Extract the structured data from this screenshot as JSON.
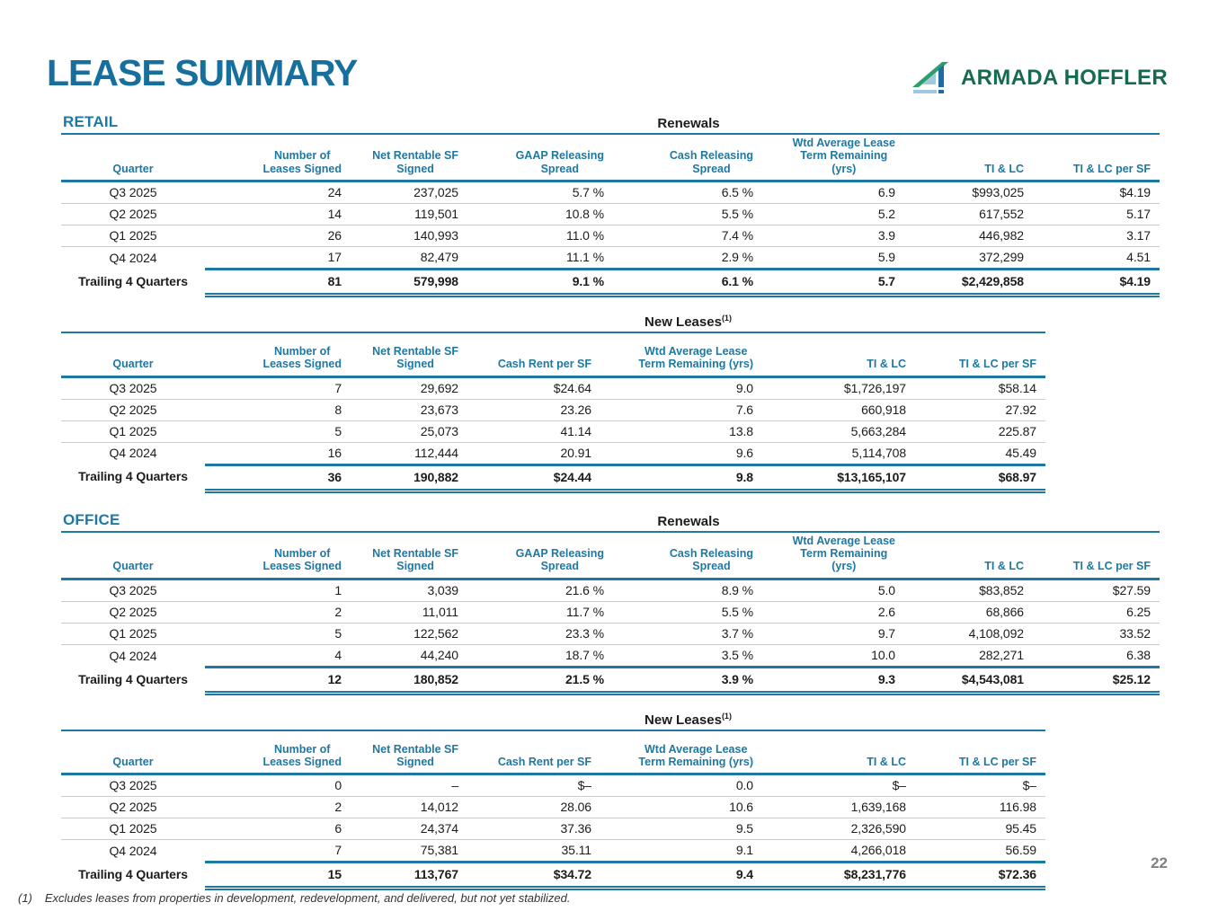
{
  "page": {
    "title": "LEASE SUMMARY",
    "logo_text": "ARMADA HOFFLER",
    "page_number": "22",
    "footnote_marker": "(1)",
    "footnote_text": "Excludes leases from properties in development, redevelopment, and delivered, but not yet stabilized."
  },
  "colors": {
    "accent_teal": "#1f78a2",
    "title_teal": "#176f9e",
    "logo_green": "#156b50",
    "logo_icon_green": "#2e9d6c",
    "logo_icon_light_blue": "#9fc9e2",
    "logo_icon_dark_blue": "#1e6ca6",
    "row_divider": "#cbcbcb",
    "page_number_gray": "#7e8083"
  },
  "sections": [
    {
      "name": "RETAIL",
      "tables": [
        {
          "title": "Renewals",
          "sup": "",
          "kind": "renewals",
          "columns": [
            "Quarter",
            "Number of\nLeases Signed",
            "Net Rentable SF\nSigned",
            "GAAP Releasing\nSpread",
            "Cash Releasing\nSpread",
            "Wtd Average Lease\nTerm Remaining\n(yrs)",
            "TI & LC",
            "TI & LC per SF"
          ],
          "rows": [
            [
              "Q3 2025",
              "24",
              "237,025",
              "5.7 %",
              "6.5 %",
              "6.9",
              "$993,025",
              "$4.19"
            ],
            [
              "Q2 2025",
              "14",
              "119,501",
              "10.8 %",
              "5.5 %",
              "5.2",
              "617,552",
              "5.17"
            ],
            [
              "Q1 2025",
              "26",
              "140,993",
              "11.0 %",
              "7.4 %",
              "3.9",
              "446,982",
              "3.17"
            ],
            [
              "Q4 2024",
              "17",
              "82,479",
              "11.1 %",
              "2.9 %",
              "5.9",
              "372,299",
              "4.51"
            ]
          ],
          "total": [
            "Trailing 4 Quarters",
            "81",
            "579,998",
            "9.1 %",
            "6.1 %",
            "5.7",
            "$2,429,858",
            "$4.19"
          ]
        },
        {
          "title": "New Leases",
          "sup": "(1)",
          "kind": "newleases",
          "columns": [
            "Quarter",
            "Number of\nLeases Signed",
            "Net Rentable SF\nSigned",
            "Cash Rent per SF",
            "Wtd Average Lease\nTerm Remaining (yrs)",
            "TI & LC",
            "TI & LC per SF"
          ],
          "rows": [
            [
              "Q3 2025",
              "7",
              "29,692",
              "$24.64",
              "9.0",
              "$1,726,197",
              "$58.14"
            ],
            [
              "Q2 2025",
              "8",
              "23,673",
              "23.26",
              "7.6",
              "660,918",
              "27.92"
            ],
            [
              "Q1 2025",
              "5",
              "25,073",
              "41.14",
              "13.8",
              "5,663,284",
              "225.87"
            ],
            [
              "Q4 2024",
              "16",
              "112,444",
              "20.91",
              "9.6",
              "5,114,708",
              "45.49"
            ]
          ],
          "total": [
            "Trailing 4 Quarters",
            "36",
            "190,882",
            "$24.44",
            "9.8",
            "$13,165,107",
            "$68.97"
          ]
        }
      ]
    },
    {
      "name": "OFFICE",
      "tables": [
        {
          "title": "Renewals",
          "sup": "",
          "kind": "renewals",
          "columns": [
            "Quarter",
            "Number of\nLeases Signed",
            "Net Rentable SF\nSigned",
            "GAAP Releasing\nSpread",
            "Cash Releasing\nSpread",
            "Wtd Average Lease\nTerm Remaining\n(yrs)",
            "TI & LC",
            "TI & LC per SF"
          ],
          "rows": [
            [
              "Q3 2025",
              "1",
              "3,039",
              "21.6 %",
              "8.9 %",
              "5.0",
              "$83,852",
              "$27.59"
            ],
            [
              "Q2 2025",
              "2",
              "11,011",
              "11.7 %",
              "5.5 %",
              "2.6",
              "68,866",
              "6.25"
            ],
            [
              "Q1 2025",
              "5",
              "122,562",
              "23.3 %",
              "3.7 %",
              "9.7",
              "4,108,092",
              "33.52"
            ],
            [
              "Q4 2024",
              "4",
              "44,240",
              "18.7 %",
              "3.5 %",
              "10.0",
              "282,271",
              "6.38"
            ]
          ],
          "total": [
            "Trailing 4 Quarters",
            "12",
            "180,852",
            "21.5 %",
            "3.9 %",
            "9.3",
            "$4,543,081",
            "$25.12"
          ]
        },
        {
          "title": "New Leases",
          "sup": "(1)",
          "kind": "newleases",
          "columns": [
            "Quarter",
            "Number of\nLeases Signed",
            "Net Rentable SF\nSigned",
            "Cash Rent per SF",
            "Wtd Average Lease\nTerm Remaining (yrs)",
            "TI & LC",
            "TI & LC per SF"
          ],
          "rows": [
            [
              "Q3 2025",
              "0",
              "–",
              "$–",
              "0.0",
              "$–",
              "$–"
            ],
            [
              "Q2 2025",
              "2",
              "14,012",
              "28.06",
              "10.6",
              "1,639,168",
              "116.98"
            ],
            [
              "Q1 2025",
              "6",
              "24,374",
              "37.36",
              "9.5",
              "2,326,590",
              "95.45"
            ],
            [
              "Q4 2024",
              "7",
              "75,381",
              "35.11",
              "9.1",
              "4,266,018",
              "56.59"
            ]
          ],
          "total": [
            "Trailing 4 Quarters",
            "15",
            "113,767",
            "$34.72",
            "9.4",
            "$8,231,776",
            "$72.36"
          ]
        }
      ]
    }
  ]
}
